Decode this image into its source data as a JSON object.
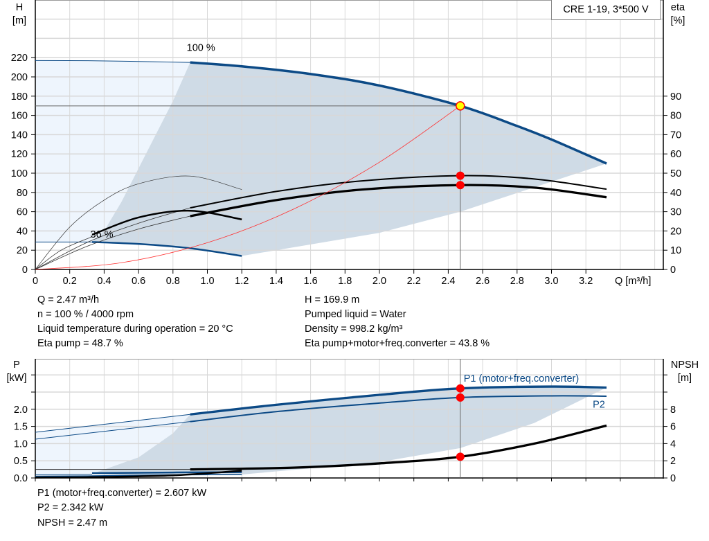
{
  "model_label": "CRE 1-19, 3*500 V",
  "colors": {
    "pump_curve": "#0c4a86",
    "eta_curve": "#000000",
    "system_curve": "#ff3030",
    "shade_dark": "#cfdbe6",
    "shade_light": "#eef5fd",
    "point": "#ff0000",
    "duty_point_fill": "#ffff00",
    "grid": "#d8d8d8"
  },
  "chart_data": [
    {
      "type": "line",
      "title": "",
      "xlabel": "Q [m³/h]",
      "ylabel_left": [
        "H",
        "[m]"
      ],
      "ylabel_right": [
        "eta",
        "[%]"
      ],
      "xlim": [
        0,
        3.6
      ],
      "ylim_left": [
        0,
        280
      ],
      "ylim_right": [
        0,
        100
      ],
      "x_ticks": [
        "0",
        "0.2",
        "0.4",
        "0.6",
        "0.8",
        "1.0",
        "1.2",
        "1.4",
        "1.6",
        "1.8",
        "2.0",
        "2.2",
        "2.4",
        "2.6",
        "2.8",
        "3.0",
        "3.2"
      ],
      "y_ticks_left": [
        "0",
        "20",
        "40",
        "60",
        "80",
        "100",
        "120",
        "140",
        "160",
        "180",
        "200",
        "220"
      ],
      "y_ticks_right": [
        "0",
        "10",
        "20",
        "30",
        "40",
        "50",
        "60",
        "70",
        "80",
        "90"
      ],
      "grid": true,
      "curve_labels": [
        {
          "text": "100 %",
          "q": 0.88,
          "h": 227
        },
        {
          "text": "36 %",
          "q": 0.32,
          "h": 33
        }
      ],
      "series": [
        {
          "id": "H100_ext",
          "axis": "H",
          "x": [
            0,
            0.3,
            0.6,
            0.9
          ],
          "y": [
            217,
            216.8,
            216,
            215
          ]
        },
        {
          "id": "H100",
          "axis": "H",
          "x": [
            0.9,
            1.2,
            1.6,
            2.0,
            2.47,
            2.8,
            3.0,
            3.32
          ],
          "y": [
            215,
            211,
            203,
            191,
            169.9,
            149,
            135,
            110
          ]
        },
        {
          "id": "H36_ext",
          "axis": "H",
          "x": [
            0,
            0.33
          ],
          "y": [
            28.5,
            28.5
          ]
        },
        {
          "id": "H36",
          "axis": "H",
          "x": [
            0.33,
            0.6,
            0.9,
            1.2
          ],
          "y": [
            28.5,
            26.5,
            22,
            14
          ]
        },
        {
          "id": "eta_pump_ext",
          "axis": "eta",
          "x": [
            0,
            0.3,
            0.6,
            0.9
          ],
          "y": [
            0,
            14,
            24,
            32
          ]
        },
        {
          "id": "eta_pump",
          "axis": "eta",
          "x": [
            0.9,
            1.4,
            1.9,
            2.47,
            2.9,
            3.32
          ],
          "y": [
            32,
            40.5,
            46,
            48.7,
            47,
            41.7
          ]
        },
        {
          "id": "eta_total_ext",
          "axis": "eta",
          "x": [
            0,
            0.3,
            0.6,
            0.9
          ],
          "y": [
            0,
            12,
            21,
            27.7
          ]
        },
        {
          "id": "eta_total",
          "axis": "eta",
          "x": [
            0.9,
            1.4,
            1.9,
            2.47,
            2.9,
            3.32
          ],
          "y": [
            27.7,
            36,
            41.5,
            43.8,
            42.5,
            37.5
          ]
        },
        {
          "id": "eta36_ext",
          "axis": "eta",
          "x": [
            0,
            0.15,
            0.33
          ],
          "y": [
            0,
            10,
            17
          ]
        },
        {
          "id": "eta36",
          "axis": "eta",
          "x": [
            0.33,
            0.6,
            0.9,
            1.2
          ],
          "y": [
            18,
            27,
            30.5,
            26
          ]
        },
        {
          "id": "eta36_pump",
          "axis": "eta",
          "x": [
            0,
            0.2,
            0.4,
            0.6,
            0.9,
            1.2
          ],
          "y": [
            0,
            22,
            36,
            44.5,
            48.5,
            41.5
          ]
        },
        {
          "id": "system",
          "axis": "H",
          "x": [
            0,
            0.5,
            1.0,
            1.5,
            2.0,
            2.47
          ],
          "y": [
            0,
            7,
            27.8,
            62.6,
            111.4,
            169.9
          ]
        }
      ],
      "operating_point": {
        "Q": 2.47,
        "H": 169.9,
        "eta_pump": 48.7,
        "eta_total": 43.8
      },
      "operating_region": {
        "axis": "H",
        "x": [
          0.9,
          1.2,
          1.6,
          2.0,
          2.47,
          2.8,
          3.0,
          3.32,
          2.47,
          2.0,
          1.2,
          0.9,
          0.6,
          0.33,
          0.4,
          0.5,
          0.6,
          0.7,
          0.8
        ],
        "y": [
          215,
          211,
          203,
          191,
          169.9,
          149,
          135,
          110,
          60,
          38,
          14,
          22,
          26.5,
          28.5,
          40,
          70,
          105,
          140,
          175
        ]
      },
      "low_flow_region": {
        "axis": "H",
        "x": [
          0,
          0.9,
          0.8,
          0.7,
          0.6,
          0.5,
          0.4,
          0.33,
          0
        ],
        "y": [
          217,
          215,
          175,
          140,
          105,
          70,
          40,
          28.5,
          28.5
        ]
      }
    },
    {
      "type": "line",
      "title": "",
      "ylabel_left": [
        "P",
        "[kW]"
      ],
      "ylabel_right": [
        "NPSH",
        "[m]"
      ],
      "xlim": [
        0,
        3.6
      ],
      "ylim_left": [
        0,
        3.45
      ],
      "ylim_right": [
        0,
        13.8
      ],
      "y_ticks_left": [
        "0.0",
        "0.5",
        "1.0",
        "1.5",
        "2.0"
      ],
      "y_ticks_right": [
        "0",
        "2",
        "4",
        "6",
        "8"
      ],
      "grid": true,
      "curve_labels": [
        {
          "text": "P1 (motor+freq.converter)",
          "q": 2.49,
          "p": 2.8
        },
        {
          "text": "P2",
          "q": 3.24,
          "p": 2.05
        }
      ],
      "series": [
        {
          "id": "P1_ext",
          "axis": "P",
          "x": [
            0,
            0.9
          ],
          "y": [
            1.33,
            1.85
          ]
        },
        {
          "id": "P1",
          "axis": "P",
          "x": [
            0.9,
            1.4,
            2.0,
            2.47,
            3.0,
            3.32
          ],
          "y": [
            1.85,
            2.13,
            2.42,
            2.607,
            2.66,
            2.63
          ]
        },
        {
          "id": "P2_ext",
          "axis": "P",
          "x": [
            0,
            0.9
          ],
          "y": [
            1.13,
            1.64
          ]
        },
        {
          "id": "P2",
          "axis": "P",
          "x": [
            0.9,
            1.4,
            2.0,
            2.47,
            3.0,
            3.32
          ],
          "y": [
            1.64,
            1.93,
            2.18,
            2.342,
            2.39,
            2.38
          ]
        },
        {
          "id": "NPSH_ext",
          "axis": "NPSH",
          "x": [
            0,
            0.9
          ],
          "y": [
            1.0,
            1.0
          ]
        },
        {
          "id": "NPSH",
          "axis": "NPSH",
          "x": [
            0.9,
            1.5,
            2.0,
            2.47,
            2.9,
            3.32
          ],
          "y": [
            1.0,
            1.2,
            1.7,
            2.47,
            4.0,
            6.1
          ]
        },
        {
          "id": "P1_36_ext",
          "axis": "P",
          "x": [
            0,
            0.33
          ],
          "y": [
            0.09,
            0.11
          ]
        },
        {
          "id": "P1_36",
          "axis": "P",
          "x": [
            0.33,
            0.8,
            1.2
          ],
          "y": [
            0.14,
            0.16,
            0.17
          ]
        },
        {
          "id": "P2_36",
          "axis": "P",
          "x": [
            0,
            0.33,
            0.8,
            1.2
          ],
          "y": [
            0.05,
            0.06,
            0.09,
            0.1
          ]
        },
        {
          "id": "NPSH_36",
          "axis": "NPSH",
          "x": [
            0,
            0.33,
            0.8,
            1.2
          ],
          "y": [
            0.05,
            0.1,
            0.3,
            0.85
          ]
        }
      ],
      "operating_points": [
        {
          "Q": 2.47,
          "axis": "P",
          "value": 2.607
        },
        {
          "Q": 2.47,
          "axis": "P",
          "value": 2.342
        },
        {
          "Q": 2.47,
          "axis": "NPSH",
          "value": 2.47
        }
      ],
      "operating_region": {
        "axis": "P",
        "x": [
          0.9,
          1.4,
          2.0,
          2.47,
          3.0,
          3.32,
          2.9,
          2.47,
          2.0,
          1.2,
          0.6,
          0.33,
          0.6,
          0.8
        ],
        "y": [
          1.85,
          2.13,
          2.42,
          2.607,
          2.66,
          2.63,
          1.6,
          0.87,
          0.46,
          0.1,
          0.06,
          0.12,
          0.6,
          1.3
        ]
      },
      "low_flow_region": {
        "axis": "P",
        "x": [
          0,
          0.9,
          0.8,
          0.6,
          0.33,
          0
        ],
        "y": [
          1.33,
          1.85,
          1.3,
          0.6,
          0.12,
          0.09
        ]
      }
    }
  ],
  "readouts_top": {
    "left": [
      "Q = 2.47 m³/h",
      "n = 100 % / 4000 rpm",
      "Liquid temperature during operation = 20 °C",
      "Eta pump = 48.7 %"
    ],
    "right": [
      "H = 169.9 m",
      "Pumped liquid = Water",
      "Density = 998.2 kg/m³",
      "Eta pump+motor+freq.converter = 43.8 %"
    ]
  },
  "readouts_bottom": [
    "P1 (motor+freq.converter) = 2.607 kW",
    "P2 = 2.342 kW",
    "NPSH = 2.47 m"
  ]
}
